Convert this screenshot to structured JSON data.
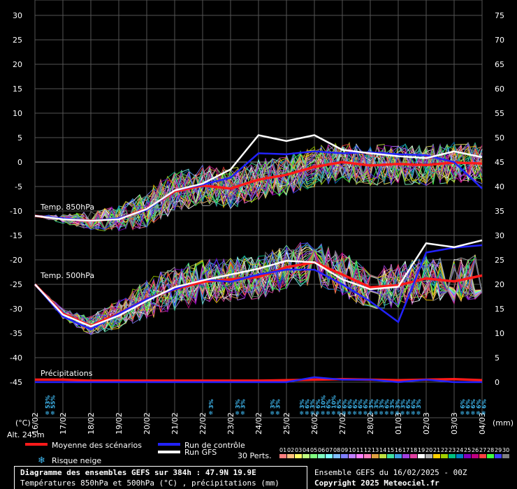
{
  "chart_data": {
    "type": "line",
    "title": "Diagramme des ensembles GEFS sur 384h : 47.9N 19.9E",
    "subtitle": "Températures 850hPa et 500hPa (°C) , précipitations (mm)",
    "x": [
      "16/02",
      "17/02",
      "18/02",
      "19/02",
      "20/02",
      "21/02",
      "22/02",
      "23/02",
      "24/02",
      "25/02",
      "26/02",
      "27/02",
      "28/02",
      "01/03",
      "02/03",
      "03/03",
      "04/03"
    ],
    "y_left_ticks": [
      30,
      25,
      20,
      15,
      10,
      5,
      0,
      -5,
      -10,
      -15,
      -20,
      -25,
      -30,
      -35,
      -40,
      -45
    ],
    "y_right_ticks": [
      75,
      70,
      65,
      60,
      55,
      50,
      45,
      40,
      35,
      30,
      25,
      20,
      15,
      10,
      5,
      0
    ],
    "ylim_left": [
      -45,
      30
    ],
    "ylim_right": [
      0,
      75
    ],
    "ylabel_left": "(°C)",
    "ylabel_right": "(mm)",
    "grid": true,
    "panel_labels": {
      "t850": "Temp. 850hPa",
      "t500": "Temp. 500hPa",
      "precip": "Précipitations"
    },
    "series": [
      {
        "name": "Moyenne des scénarios",
        "color": "#ff1a1a",
        "panel": "t850",
        "values": [
          -11,
          -11.6,
          -12,
          -11.6,
          -9.6,
          -6,
          -4.8,
          -5.4,
          -3.6,
          -2.6,
          -1,
          0,
          -0.7,
          -0.4,
          -0.6,
          -0.1,
          -0.3
        ]
      },
      {
        "name": "Run de contrôle",
        "color": "#2222ff",
        "panel": "t850",
        "values": [
          -11,
          -11.5,
          -12,
          -11.5,
          -9.8,
          -5.8,
          -4.6,
          -3.2,
          1.8,
          1.6,
          2.2,
          1.8,
          2,
          1.6,
          1.4,
          0,
          -5.4
        ]
      },
      {
        "name": "Run GFS",
        "color": "#ffffff",
        "panel": "t850",
        "values": [
          -11,
          -11.7,
          -12,
          -11.7,
          -9.6,
          -5.8,
          -4.4,
          -1.5,
          5.5,
          4.3,
          5.5,
          2.5,
          1.8,
          1.2,
          0.8,
          2.2,
          1
        ]
      },
      {
        "name": "Moyenne des scénarios",
        "color": "#ff1a1a",
        "panel": "t500",
        "values": [
          -25,
          -31,
          -33.5,
          -31,
          -28,
          -26,
          -24.5,
          -24,
          -23.5,
          -21.5,
          -20.5,
          -23,
          -25.6,
          -25.2,
          -23.8,
          -24.4,
          -23.2
        ]
      },
      {
        "name": "Run de contrôle",
        "color": "#2222ff",
        "panel": "t500",
        "values": [
          -25,
          -31.6,
          -34.2,
          -31,
          -28,
          -26,
          -24,
          -24.5,
          -23,
          -22,
          -22,
          -25,
          -28.5,
          -32.7,
          -18.5,
          -17.5,
          -17
        ]
      },
      {
        "name": "Run GFS",
        "color": "#ffffff",
        "panel": "t500",
        "values": [
          -25,
          -31.2,
          -33.6,
          -31.4,
          -28.4,
          -25.6,
          -24.2,
          -23,
          -21.8,
          -20.2,
          -20.5,
          -24,
          -26,
          -25.5,
          -16.6,
          -17.4,
          -16
        ]
      },
      {
        "name": "Moyenne des scénarios",
        "color": "#ff1a1a",
        "panel": "precip",
        "values": [
          0.5,
          0.5,
          0.3,
          0.3,
          0.3,
          0.3,
          0.3,
          0.3,
          0.3,
          0.4,
          0.5,
          0.6,
          0.5,
          0.4,
          0.5,
          0.6,
          0.4
        ]
      },
      {
        "name": "Run de contrôle",
        "color": "#2222ff",
        "panel": "precip",
        "values": [
          0,
          0,
          0,
          0,
          0,
          0,
          0,
          0,
          0,
          0,
          1,
          0.5,
          0.5,
          0,
          0.5,
          0,
          0
        ]
      }
    ],
    "snow_risk": [
      {
        "date_index": 0.45,
        "labels": [
          "53%",
          "55%"
        ]
      },
      {
        "date_index": 6.3,
        "labels": [
          "3%"
        ]
      },
      {
        "date_index": 7.25,
        "labels": [
          "3%",
          "3%"
        ]
      },
      {
        "date_index": 8.5,
        "labels": [
          "3%",
          "3%"
        ]
      },
      {
        "date_index": 9.55,
        "labels": [
          "3%",
          "6%",
          "3%",
          "6%",
          "10%",
          "6%",
          "10%",
          "6%",
          "6%",
          "6%",
          "6%",
          "6%",
          "6%",
          "3%",
          "3%",
          "3%",
          "6%",
          "3%",
          "3%",
          "3%",
          "6%",
          "6%",
          "3%"
        ]
      },
      {
        "date_index": 15.3,
        "labels": [
          "6%",
          "6%",
          "6%",
          "6%",
          "6%"
        ]
      }
    ]
  },
  "axis": {
    "ylabel_left": "(°C)",
    "ylabel_right": "(mm)",
    "altitude": "Alt. 245m"
  },
  "legend": {
    "mean": "Moyenne des scénarios",
    "control": "Run de contrôle",
    "gfs": "Run GFS",
    "snow": "Risque neige",
    "perturbations_label": "30 Perts.",
    "perturbations": [
      "01",
      "02",
      "03",
      "04",
      "05",
      "06",
      "07",
      "08",
      "09",
      "10",
      "11",
      "12",
      "13",
      "14",
      "15",
      "16",
      "17",
      "18",
      "19",
      "20",
      "21",
      "22",
      "23",
      "24",
      "25",
      "26",
      "27",
      "28",
      "29",
      "30"
    ],
    "pert_colors": [
      "#ff7f7f",
      "#ffbf7f",
      "#ffff66",
      "#bfff7f",
      "#7fff7f",
      "#7fffbf",
      "#7fffff",
      "#7fbfff",
      "#7f7fff",
      "#bf7fff",
      "#ff7fff",
      "#ff7fbf",
      "#e0a040",
      "#c0e040",
      "#40e0a0",
      "#40a0e0",
      "#a040e0",
      "#e040a0",
      "#ffffff",
      "#b0b0b0",
      "#ffd000",
      "#a0d000",
      "#00c080",
      "#0080c0",
      "#8000c0",
      "#c00080",
      "#ff4040",
      "#40ff40",
      "#4040ff",
      "#808080"
    ]
  },
  "footer": {
    "title": "Diagramme des ensembles GEFS sur 384h : 47.9N 19.9E",
    "subtitle": "Températures 850hPa et 500hPa (°C) , précipitations (mm)",
    "run": "Ensemble GEFS du 16/02/2025 - 00Z",
    "copyright": "Copyright 2025 Meteociel.fr"
  }
}
